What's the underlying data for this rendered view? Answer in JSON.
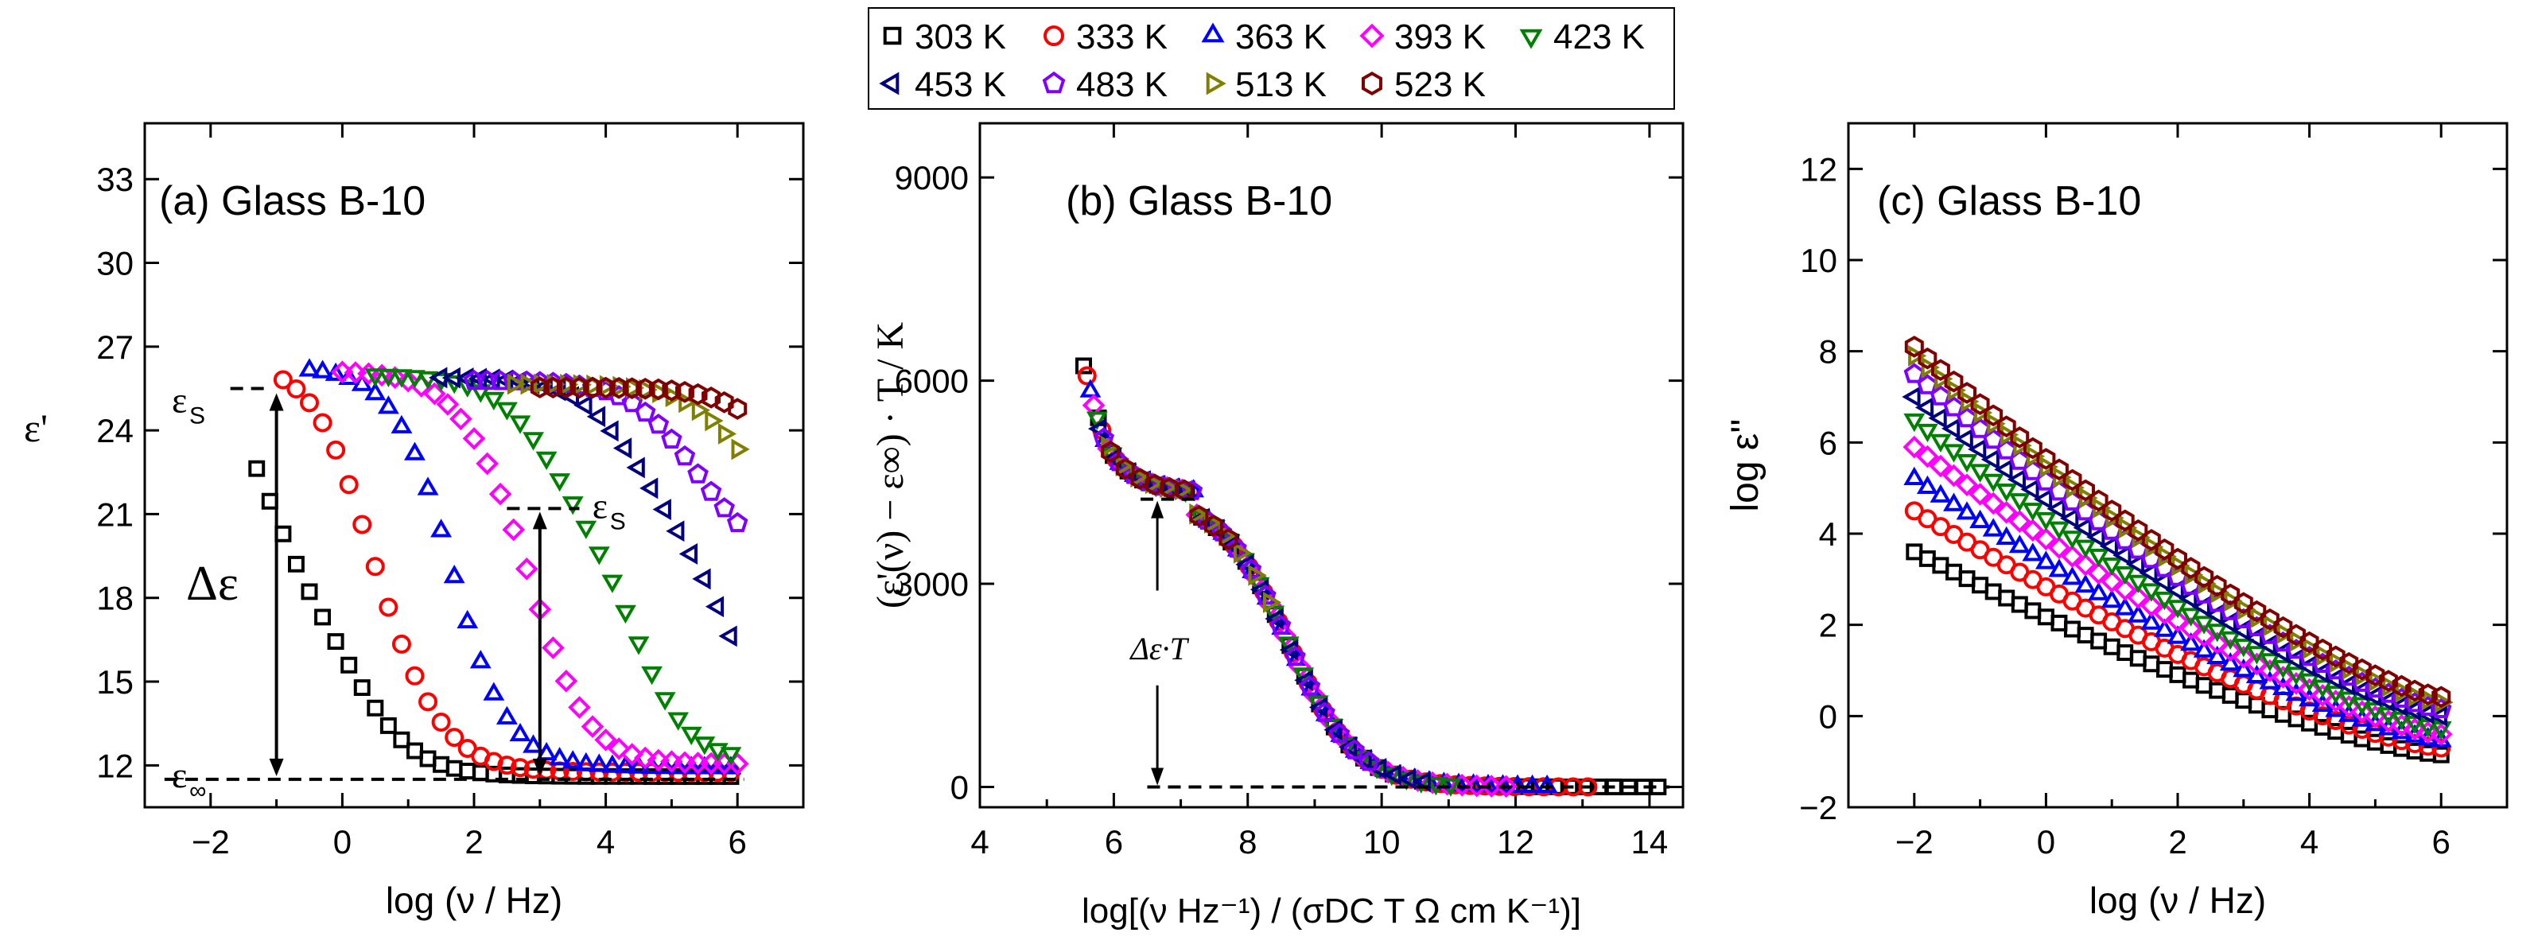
{
  "legend": {
    "placement": "top-center",
    "entries": [
      {
        "label": "303 K",
        "color": "#000000",
        "marker": "square"
      },
      {
        "label": "333 K",
        "color": "#ff0000",
        "marker": "circle"
      },
      {
        "label": "363 K",
        "color": "#0000ff",
        "marker": "triangle-up"
      },
      {
        "label": "393 K",
        "color": "#ff00ff",
        "marker": "diamond"
      },
      {
        "label": "423 K",
        "color": "#008000",
        "marker": "triangle-down"
      },
      {
        "label": "453 K",
        "color": "#000080",
        "marker": "triangle-left"
      },
      {
        "label": "483 K",
        "color": "#8000ff",
        "marker": "pentagon"
      },
      {
        "label": "513 K",
        "color": "#808000",
        "marker": "triangle-right"
      },
      {
        "label": "523 K",
        "color": "#800000",
        "marker": "hexagon"
      }
    ]
  },
  "chart_data": [
    {
      "type": "scatter",
      "title": "(a) Glass B-10",
      "xlabel": "log (ν / Hz)",
      "ylabel": "ε'",
      "xlim": [
        -3,
        7
      ],
      "ylim": [
        10.5,
        35
      ],
      "xticks": [
        -2,
        0,
        2,
        4,
        6
      ],
      "yticks": [
        12,
        15,
        18,
        21,
        24,
        27,
        30,
        33
      ],
      "grid": false,
      "params": {
        "eps_inf": 11.5,
        "eps_s": 25.5,
        "eps_s2": 21.2,
        "T": [
          303,
          333,
          363,
          393,
          423,
          453,
          483,
          513,
          523
        ],
        "xstart": [
          -1.3,
          -0.9,
          -0.5,
          0.0,
          0.5,
          1.5,
          2.0,
          2.6,
          3.0
        ],
        "sigma_log": [
          -3.0,
          -2.3,
          -1.6,
          -1.0,
          -0.3,
          0.4,
          1.0,
          1.6,
          2.0
        ]
      },
      "annotations": {
        "eps_s_left": "ε",
        "eps_s_right": "ε",
        "eps_s_sub": "S",
        "eps_inf": "ε",
        "eps_inf_sub": "∞",
        "delta_eps": "Δε"
      }
    },
    {
      "type": "scatter",
      "title": "(b) Glass B-10",
      "xlabel": "log[(ν Hz⁻¹) / (σDC T Ω cm K⁻¹)]",
      "ylabel": "(ε'(ν) − ε∞) · T / K",
      "xlim": [
        4,
        14.5
      ],
      "ylim": [
        -300,
        9800
      ],
      "xticks": [
        4,
        6,
        8,
        10,
        12,
        14
      ],
      "yticks": [
        0,
        3000,
        6000,
        9000
      ],
      "grid": false,
      "annotations": {
        "delta_eps_T": "Δε·T"
      }
    },
    {
      "type": "scatter",
      "title": "(c) Glass B-10",
      "xlabel": "log (ν / Hz)",
      "ylabel": "log ε''",
      "xlim": [
        -3,
        7
      ],
      "ylim": [
        -2,
        13
      ],
      "xticks": [
        -2,
        0,
        2,
        4,
        6
      ],
      "yticks": [
        -2,
        0,
        2,
        4,
        6,
        8,
        10,
        12
      ],
      "grid": false,
      "params": {
        "start": [
          3.6,
          4.5,
          5.2,
          5.9,
          6.5,
          7.0,
          7.5,
          7.9,
          8.1
        ],
        "end": [
          -0.85,
          -0.7,
          -0.55,
          -0.4,
          -0.25,
          0.0,
          0.15,
          0.3,
          0.42
        ]
      }
    }
  ]
}
